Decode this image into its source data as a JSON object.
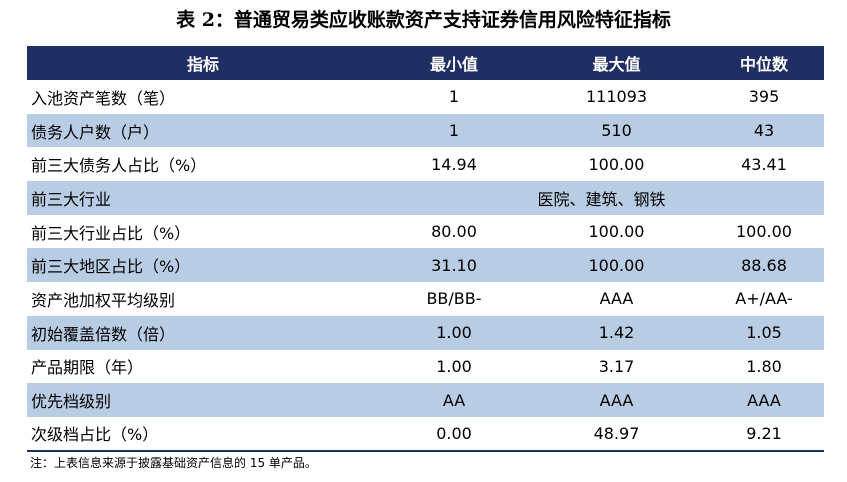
{
  "title": "表 2：普通贸易类应收账款资产支持证券信用风险特征指标",
  "table": {
    "headers": [
      "指标",
      "最小值",
      "最大值",
      "中位数"
    ],
    "rows": [
      {
        "label": "入池资产笔数（笔）",
        "min": "1",
        "max": "111093",
        "median": "395"
      },
      {
        "label": "债务人户数（户）",
        "min": "1",
        "max": "510",
        "median": "43"
      },
      {
        "label": "前三大债务人占比（%）",
        "min": "14.94",
        "max": "100.00",
        "median": "43.41"
      },
      {
        "label": "前三大行业",
        "merged": "医院、建筑、钢铁"
      },
      {
        "label": "前三大行业占比（%）",
        "min": "80.00",
        "max": "100.00",
        "median": "100.00"
      },
      {
        "label": "前三大地区占比（%）",
        "min": "31.10",
        "max": "100.00",
        "median": "88.68"
      },
      {
        "label": "资产池加权平均级别",
        "min": "BB/BB-",
        "max": "AAA",
        "median": "A+/AA-"
      },
      {
        "label": "初始覆盖倍数（倍）",
        "min": "1.00",
        "max": "1.42",
        "median": "1.05"
      },
      {
        "label": "产品期限（年）",
        "min": "1.00",
        "max": "3.17",
        "median": "1.80"
      },
      {
        "label": "优先档级别",
        "min": "AA",
        "max": "AAA",
        "median": "AAA"
      },
      {
        "label": "次级档占比（%）",
        "min": "0.00",
        "max": "48.97",
        "median": "9.21"
      }
    ]
  },
  "note": "注：上表信息来源于披露基础资产信息的 15 单产品。"
}
